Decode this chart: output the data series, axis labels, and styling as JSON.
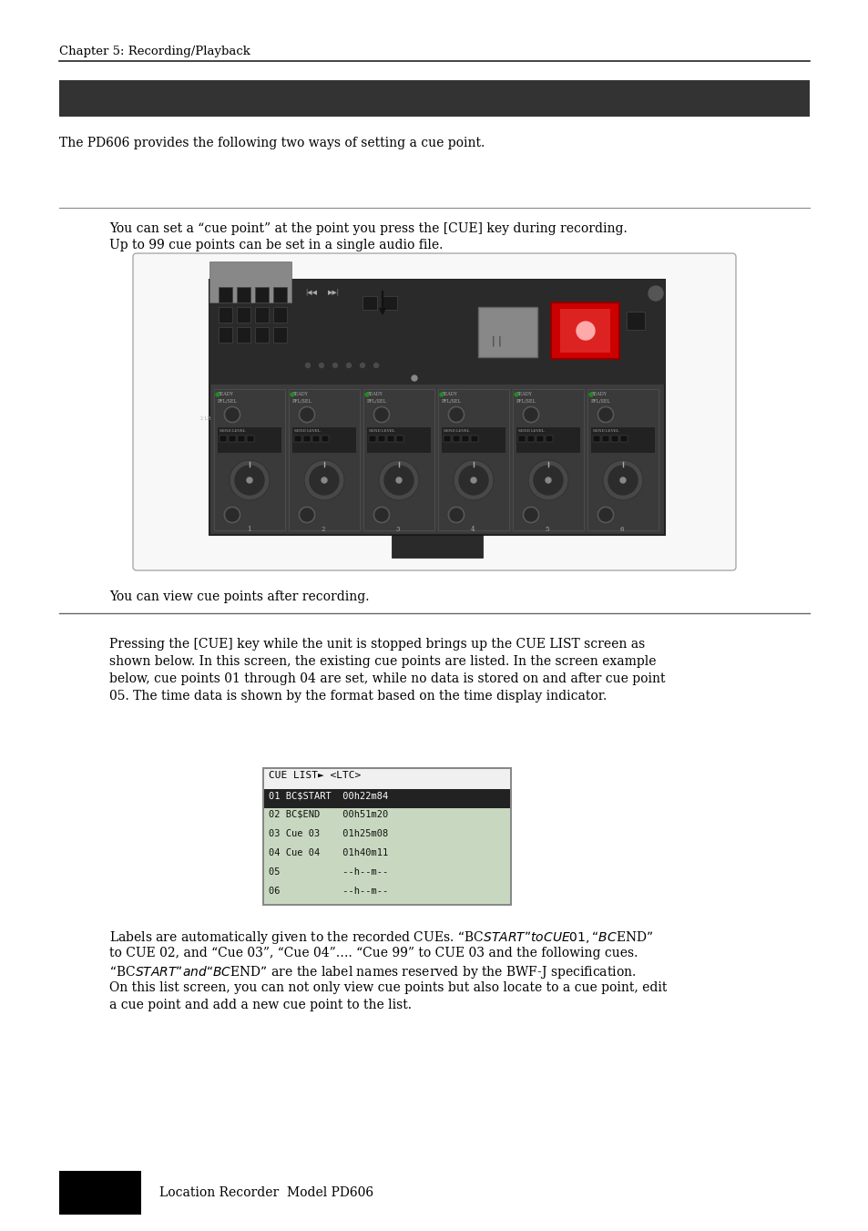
{
  "page_bg": "#ffffff",
  "chapter_title": "Chapter 5: Recording/Playback",
  "dark_banner_color": "#333333",
  "intro_text": "The PD606 provides the following two ways of setting a cue point.",
  "section1_text_line1": "You can set a “cue point” at the point you press the [CUE] key during recording.",
  "section1_text_line2": "Up to 99 cue points can be set in a single audio file.",
  "section1_note": "You can view cue points after recording.",
  "section2_text": [
    "Pressing the [CUE] key while the unit is stopped brings up the CUE LIST screen as",
    "shown below. In this screen, the existing cue points are listed. In the screen example",
    "below, cue points 01 through 04 are set, while no data is stored on and after cue point",
    "05. The time data is shown by the format based on the time display indicator."
  ],
  "section2_labels_text": [
    "Labels are automatically given to the recorded CUEs. “BC$START” to CUE 01, “BC$END”",
    "to CUE 02, and “Cue 03”, “Cue 04”…. “Cue 99” to CUE 03 and the following cues.",
    "“BC$START” and “BC$END” are the label names reserved by the BWF-J specification.",
    "On this list screen, you can not only view cue points but also locate to a cue point, edit",
    "a cue point and add a new cue point to the list."
  ],
  "footer_text": "Location Recorder  Model PD606",
  "cue_list_title": "CUE LIST► <LTC>",
  "cue_list_rows": [
    " 01 BC$START  00h22m84",
    " 02 BC$END    00h51m20",
    " 03 Cue 03    01h25m08",
    " 04 Cue 04    01h40m11",
    " 05           --h--m--",
    " 06           --h--m--"
  ]
}
